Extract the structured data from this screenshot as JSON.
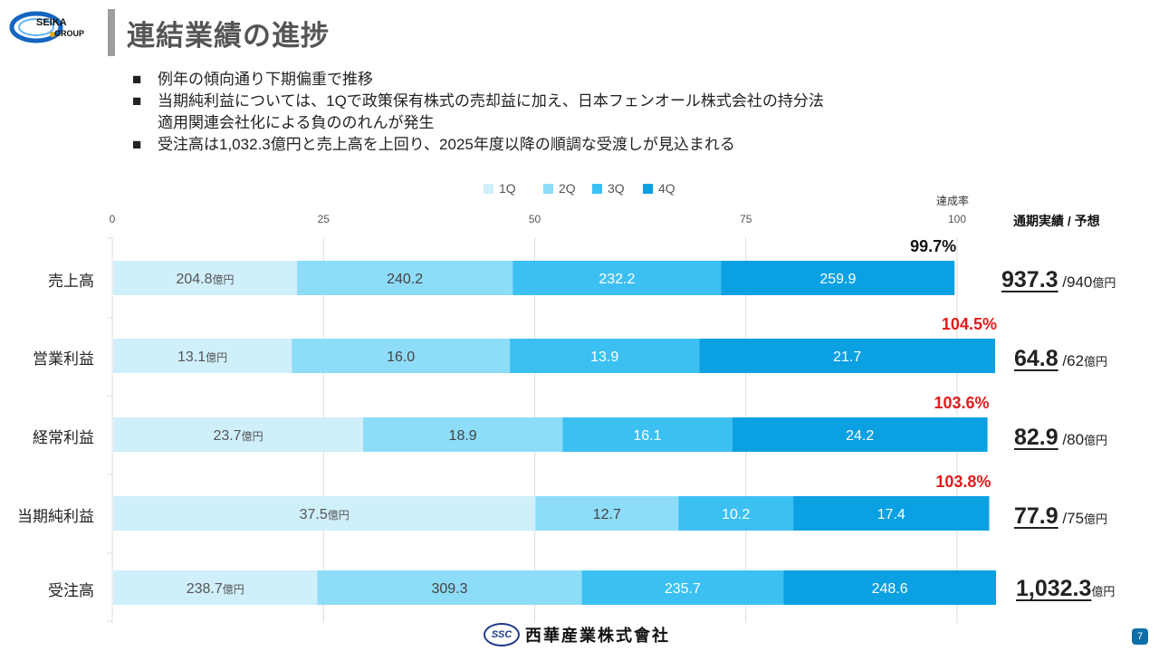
{
  "logo": {
    "line1": "SEIKA",
    "line2": "GROUP"
  },
  "title": "連結業績の進捗",
  "bullets": [
    [
      "例年の傾向通り下期偏重で推移"
    ],
    [
      "当期純利益については、1Qで政策保有株式の売却益に加え、日本フェンオール株式会社の持分法",
      "適用関連会社化による負ののれんが発生"
    ],
    [
      "受注高は1,032.3億円と売上高を上回り、2025年度以降の順調な受渡しが見込まれる"
    ]
  ],
  "colors": {
    "q1": "#cfeffb",
    "q2": "#8ddcf8",
    "q3": "#3cc0f2",
    "q4": "#0aa0e2",
    "red": "#e01b1b"
  },
  "chart_data": {
    "type": "bar",
    "orientation": "horizontal-stacked",
    "series_names": [
      "1Q",
      "2Q",
      "3Q",
      "4Q"
    ],
    "axis_ticks": [
      "0",
      "25",
      "50",
      "75",
      "100"
    ],
    "xlim": [
      0,
      100
    ],
    "rate_header": "達成率",
    "side_header": "通期実績 / 予想",
    "rows": [
      {
        "label": "売上高",
        "values": [
          204.8,
          240.2,
          232.2,
          259.9
        ],
        "seg_labels": [
          "204.8",
          "240.2",
          "232.2",
          "259.9"
        ],
        "first_unit": "億円",
        "rate": "99.7%",
        "rate_red": false,
        "result": "937.3",
        "forecast": " /940",
        "unit": "億円"
      },
      {
        "label": "営業利益",
        "values": [
          13.1,
          16.0,
          13.9,
          21.7
        ],
        "seg_labels": [
          "13.1",
          "16.0",
          "13.9",
          "21.7"
        ],
        "first_unit": "億円",
        "rate": "104.5%",
        "rate_red": true,
        "result": "64.8",
        "forecast": " /62",
        "unit": "億円"
      },
      {
        "label": "経常利益",
        "values": [
          23.7,
          18.9,
          16.1,
          24.2
        ],
        "seg_labels": [
          "23.7",
          "18.9",
          "16.1",
          "24.2"
        ],
        "first_unit": "億円",
        "rate": "103.6%",
        "rate_red": true,
        "result": "82.9",
        "forecast": " /80",
        "unit": "億円"
      },
      {
        "label": "当期純利益",
        "values": [
          37.5,
          12.7,
          10.2,
          17.4
        ],
        "seg_labels": [
          "37.5",
          "12.7",
          "10.2",
          "17.4"
        ],
        "first_unit": "億円",
        "rate": "103.8%",
        "rate_red": true,
        "result": "77.9",
        "forecast": " /75",
        "unit": "億円"
      },
      {
        "label": "受注高",
        "values": [
          238.7,
          309.3,
          235.7,
          248.6
        ],
        "seg_labels": [
          "238.7",
          "309.3",
          "235.7",
          "248.6"
        ],
        "first_unit": "億円",
        "rate": "",
        "rate_red": false,
        "result": "1,032.3",
        "forecast": "",
        "unit": "億円"
      }
    ]
  },
  "footer": {
    "mark": "SSC",
    "company": "西華産業株式會社"
  },
  "page_number": "7"
}
